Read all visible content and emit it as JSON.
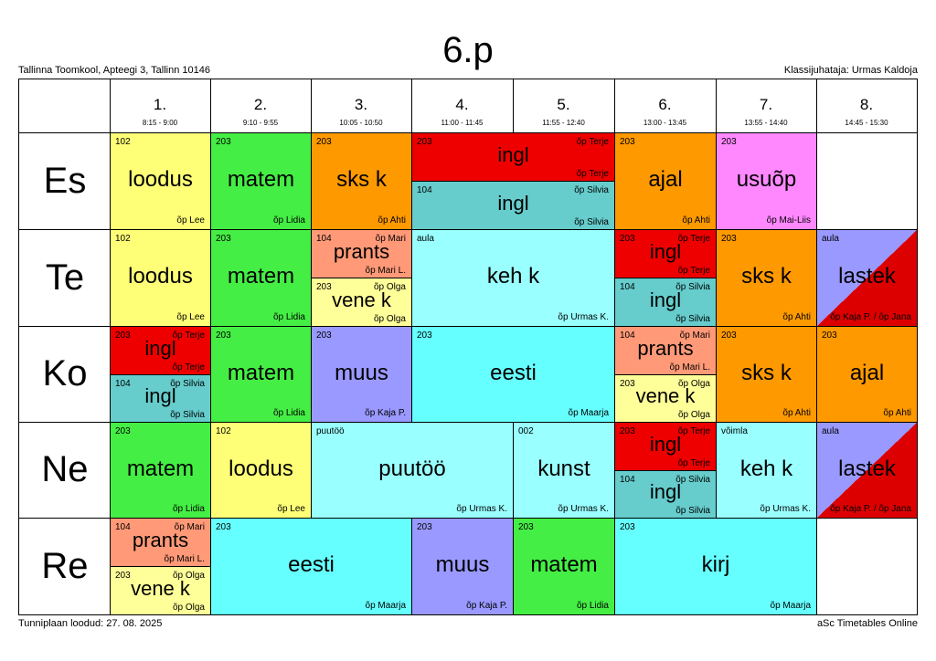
{
  "header": {
    "title": "6.p",
    "school": "Tallinna Toomkool, Apteegi 3, Tallinn 10146",
    "class_teacher": "Klassijuhataja: Urmas Kaldoja"
  },
  "footer": {
    "created": "Tunniplaan loodud: 27. 08. 2025",
    "brand": "aSc Timetables Online"
  },
  "periods": [
    {
      "num": "1.",
      "time": "8:15 - 9:00"
    },
    {
      "num": "2.",
      "time": "9:10 - 9:55"
    },
    {
      "num": "3.",
      "time": "10:05 - 10:50"
    },
    {
      "num": "4.",
      "time": "11:00 - 11:45"
    },
    {
      "num": "5.",
      "time": "11:55 - 12:40"
    },
    {
      "num": "6.",
      "time": "13:00 - 13:45"
    },
    {
      "num": "7.",
      "time": "13:55 - 14:40"
    },
    {
      "num": "8.",
      "time": "14:45 - 15:30"
    }
  ],
  "days": [
    "Es",
    "Te",
    "Ko",
    "Ne",
    "Re"
  ],
  "lessons": [
    {
      "day": 0,
      "p": 1,
      "span": 1,
      "part": "full",
      "room": "102",
      "subject": "loodus",
      "teacher": "õp Lee",
      "color": "#ffff77"
    },
    {
      "day": 0,
      "p": 2,
      "span": 1,
      "part": "full",
      "room": "203",
      "subject": "matem",
      "teacher": "õp Lidia",
      "color": "#44ee44"
    },
    {
      "day": 0,
      "p": 3,
      "span": 1,
      "part": "full",
      "room": "203",
      "subject": "sks k",
      "teacher": "õp Ahti",
      "color": "#ff9900"
    },
    {
      "day": 0,
      "p": 4,
      "span": 2,
      "part": "top",
      "room": "203",
      "subject": "ingl",
      "teacher": "õp Terje",
      "color": "#ee0000"
    },
    {
      "day": 0,
      "p": 4,
      "span": 2,
      "part": "bottom",
      "room": "104",
      "subject": "ingl",
      "teacher": "õp Silvia",
      "color": "#66cccc"
    },
    {
      "day": 0,
      "p": 6,
      "span": 1,
      "part": "full",
      "room": "203",
      "subject": "ajal",
      "teacher": "õp Ahti",
      "color": "#ff9900"
    },
    {
      "day": 0,
      "p": 7,
      "span": 1,
      "part": "full",
      "room": "203",
      "subject": "usuõp",
      "teacher": "õp Mai-Liis",
      "color": "#ff88ff"
    },
    {
      "day": 1,
      "p": 1,
      "span": 1,
      "part": "full",
      "room": "102",
      "subject": "loodus",
      "teacher": "õp Lee",
      "color": "#ffff77"
    },
    {
      "day": 1,
      "p": 2,
      "span": 1,
      "part": "full",
      "room": "203",
      "subject": "matem",
      "teacher": "õp Lidia",
      "color": "#44ee44"
    },
    {
      "day": 1,
      "p": 3,
      "span": 1,
      "part": "top",
      "room": "104",
      "subject": "prants",
      "teacher": "õp Mari L.",
      "teacher_short": "õp Mari",
      "color": "#ff9977"
    },
    {
      "day": 1,
      "p": 3,
      "span": 1,
      "part": "bottom",
      "room": "203",
      "subject": "vene k",
      "teacher": "õp Olga",
      "color": "#ffff99"
    },
    {
      "day": 1,
      "p": 4,
      "span": 2,
      "part": "full",
      "room": "aula",
      "subject": "keh k",
      "teacher": "õp Urmas K.",
      "color": "#99ffff"
    },
    {
      "day": 1,
      "p": 6,
      "span": 1,
      "part": "top",
      "room": "203",
      "subject": "ingl",
      "teacher": "õp Terje",
      "color": "#ee0000"
    },
    {
      "day": 1,
      "p": 6,
      "span": 1,
      "part": "bottom",
      "room": "104",
      "subject": "ingl",
      "teacher": "õp Silvia",
      "color": "#66cccc"
    },
    {
      "day": 1,
      "p": 7,
      "span": 1,
      "part": "full",
      "room": "203",
      "subject": "sks k",
      "teacher": "õp Ahti",
      "color": "#ff9900"
    },
    {
      "day": 1,
      "p": 8,
      "span": 1,
      "part": "diag",
      "room": "aula",
      "subject": "lastek",
      "teacher": "õp Kaja P. / õp Jana",
      "color": "#9999ff",
      "color2": "#dd0000"
    },
    {
      "day": 2,
      "p": 1,
      "span": 1,
      "part": "top",
      "room": "203",
      "subject": "ingl",
      "teacher": "õp Terje",
      "color": "#ee0000"
    },
    {
      "day": 2,
      "p": 1,
      "span": 1,
      "part": "bottom",
      "room": "104",
      "subject": "ingl",
      "teacher": "õp Silvia",
      "color": "#66cccc"
    },
    {
      "day": 2,
      "p": 2,
      "span": 1,
      "part": "full",
      "room": "203",
      "subject": "matem",
      "teacher": "õp Lidia",
      "color": "#44ee44"
    },
    {
      "day": 2,
      "p": 3,
      "span": 1,
      "part": "full",
      "room": "203",
      "subject": "muus",
      "teacher": "õp Kaja P.",
      "color": "#9999ff"
    },
    {
      "day": 2,
      "p": 4,
      "span": 2,
      "part": "full",
      "room": "203",
      "subject": "eesti",
      "teacher": "õp Maarja",
      "color": "#66ffff"
    },
    {
      "day": 2,
      "p": 6,
      "span": 1,
      "part": "top",
      "room": "104",
      "subject": "prants",
      "teacher": "õp Mari L.",
      "teacher_short": "õp Mari",
      "color": "#ff9977"
    },
    {
      "day": 2,
      "p": 6,
      "span": 1,
      "part": "bottom",
      "room": "203",
      "subject": "vene k",
      "teacher": "õp Olga",
      "color": "#ffff99"
    },
    {
      "day": 2,
      "p": 7,
      "span": 1,
      "part": "full",
      "room": "203",
      "subject": "sks k",
      "teacher": "õp Ahti",
      "color": "#ff9900"
    },
    {
      "day": 2,
      "p": 8,
      "span": 1,
      "part": "full",
      "room": "203",
      "subject": "ajal",
      "teacher": "õp Ahti",
      "color": "#ff9900"
    },
    {
      "day": 3,
      "p": 1,
      "span": 1,
      "part": "full",
      "room": "203",
      "subject": "matem",
      "teacher": "õp Lidia",
      "color": "#44ee44"
    },
    {
      "day": 3,
      "p": 2,
      "span": 1,
      "part": "full",
      "room": "102",
      "subject": "loodus",
      "teacher": "õp Lee",
      "color": "#ffff77"
    },
    {
      "day": 3,
      "p": 3,
      "span": 2,
      "part": "full",
      "room": "puutöö",
      "subject": "puutöö",
      "teacher": "õp Urmas K.",
      "color": "#99ffff"
    },
    {
      "day": 3,
      "p": 5,
      "span": 1,
      "part": "full",
      "room": "002",
      "subject": "kunst",
      "teacher": "õp Urmas K.",
      "color": "#99ffff"
    },
    {
      "day": 3,
      "p": 6,
      "span": 1,
      "part": "top",
      "room": "203",
      "subject": "ingl",
      "teacher": "õp Terje",
      "color": "#ee0000"
    },
    {
      "day": 3,
      "p": 6,
      "span": 1,
      "part": "bottom",
      "room": "104",
      "subject": "ingl",
      "teacher": "õp Silvia",
      "color": "#66cccc"
    },
    {
      "day": 3,
      "p": 7,
      "span": 1,
      "part": "full",
      "room": "võimla",
      "subject": "keh k",
      "teacher": "õp Urmas K.",
      "color": "#99ffff"
    },
    {
      "day": 3,
      "p": 8,
      "span": 1,
      "part": "diag",
      "room": "aula",
      "subject": "lastek",
      "teacher": "õp Kaja P. / õp Jana",
      "color": "#9999ff",
      "color2": "#dd0000"
    },
    {
      "day": 4,
      "p": 1,
      "span": 1,
      "part": "top",
      "room": "104",
      "subject": "prants",
      "teacher": "õp Mari L.",
      "teacher_short": "õp Mari",
      "color": "#ff9977"
    },
    {
      "day": 4,
      "p": 1,
      "span": 1,
      "part": "bottom",
      "room": "203",
      "subject": "vene k",
      "teacher": "õp Olga",
      "color": "#ffff99"
    },
    {
      "day": 4,
      "p": 2,
      "span": 2,
      "part": "full",
      "room": "203",
      "subject": "eesti",
      "teacher": "õp Maarja",
      "color": "#66ffff"
    },
    {
      "day": 4,
      "p": 4,
      "span": 1,
      "part": "full",
      "room": "203",
      "subject": "muus",
      "teacher": "õp Kaja P.",
      "color": "#9999ff"
    },
    {
      "day": 4,
      "p": 5,
      "span": 1,
      "part": "full",
      "room": "203",
      "subject": "matem",
      "teacher": "õp Lidia",
      "color": "#44ee44"
    },
    {
      "day": 4,
      "p": 6,
      "span": 2,
      "part": "full",
      "room": "203",
      "subject": "kirj",
      "teacher": "õp Maarja",
      "color": "#66ffff"
    }
  ]
}
